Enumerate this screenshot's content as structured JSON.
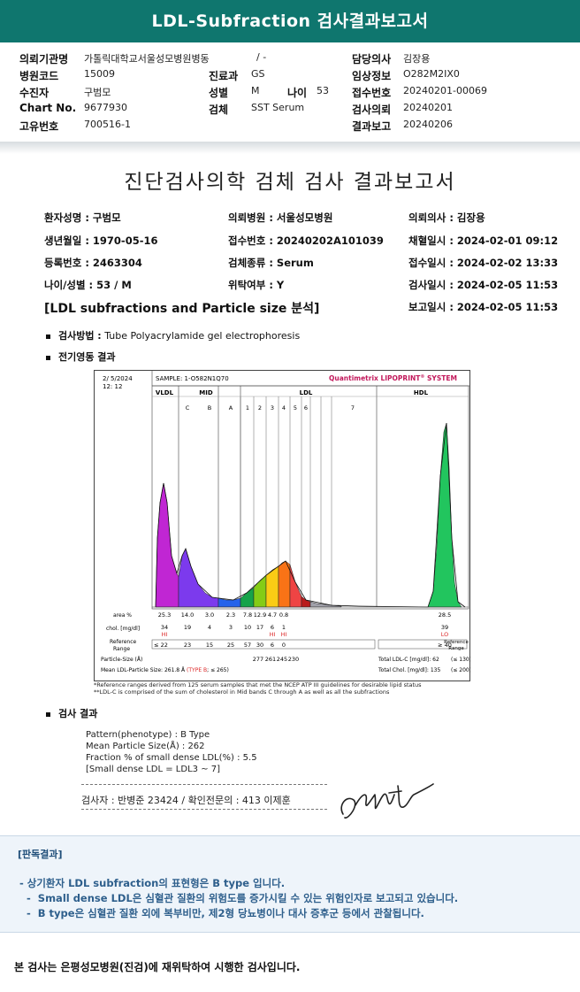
{
  "header": {
    "title": "LDL-Subfraction 검사결과보고서"
  },
  "info": {
    "left": [
      {
        "label": "의뢰기관명",
        "value": "가톨릭대학교서울성모병원병동"
      },
      {
        "label": "병원코드",
        "value": "15009"
      },
      {
        "label": "수진자",
        "value": "구범모"
      },
      {
        "label": "Chart No.",
        "value": "9677930"
      },
      {
        "label": "고유번호",
        "value": "700516-1"
      }
    ],
    "ward_extra": "/ -",
    "mid": [
      {
        "label": "진료과",
        "value": "GS"
      },
      {
        "label": "성별",
        "value": "M"
      },
      {
        "label": "검체",
        "value": "SST Serum"
      }
    ],
    "age_label": "나이",
    "age_value": "53",
    "right": [
      {
        "label": "담당의사",
        "value": "김장용"
      },
      {
        "label": "임상정보",
        "value": "O282M2IX0"
      },
      {
        "label": "접수번호",
        "value": "20240201-00069"
      },
      {
        "label": "검사의뢰",
        "value": "20240201"
      },
      {
        "label": "결과보고",
        "value": "20240206"
      }
    ]
  },
  "doc_title": "진단검사의학 검체 검사 결과보고서",
  "patient": {
    "col1": [
      "환자성명 : 구범모",
      "생년월일 : 1970-05-16",
      "등록번호 : 2463304",
      "나이/성별 : 53 / M"
    ],
    "col2": [
      "의뢰병원 : 서울성모병원",
      "접수번호 : 20240202A101039",
      "검체종류 : Serum",
      "위탁여부 : Y"
    ],
    "col3": [
      "의뢰의사 : 김장용",
      "채혈일시 : 2024-02-01 09:12",
      "접수일시 : 2024-02-02 13:33",
      "검사일시 : 2024-02-05 11:53",
      "보고일시 : 2024-02-05 11:53"
    ]
  },
  "section_title": "[LDL subfractions and Particle size 분석]",
  "method_label": "검사방법 :",
  "method_value": "Tube Polyacrylamide gel electrophoresis",
  "electro_label": "전기영동 결과",
  "chart_data": {
    "type": "area",
    "header_date": "2/ 5/2024",
    "header_time": "12: 12",
    "sample": "SAMPLE:   1-O582N1Q70",
    "system": "Quantimetrix LIPOPRINT",
    "system_mark": "®",
    "system_suffix": " SYSTEM",
    "bands_top": [
      "VLDL",
      "MID",
      "LDL",
      "HDL"
    ],
    "bands_sub": [
      "C",
      "B",
      "A",
      "1",
      "2",
      "3",
      "4",
      "5",
      "6",
      "7"
    ],
    "rows": {
      "area_label": "area %",
      "area": [
        "25.3",
        "14.0",
        "3.0",
        "2.3",
        "7.8",
        "12.9",
        "4.7",
        "0.8",
        "28.5"
      ],
      "chol_label": "chol. [mg/dl]",
      "chol": [
        "34",
        "19",
        "4",
        "3",
        "10",
        "17",
        "6",
        "1",
        "39"
      ],
      "flags": [
        "HI",
        "",
        "",
        "",
        "",
        "",
        "HI",
        "HI",
        "LO"
      ],
      "ref_label": "Reference Range",
      "ref": [
        "≤ 22",
        "23",
        "15",
        "25",
        "57",
        "30",
        "6",
        "0",
        "≥ 40"
      ],
      "ref_right": "Reference Range",
      "psize_label": "Particle-Size (Å)",
      "psize": [
        "277",
        "261",
        "245",
        "230"
      ],
      "total_ldl": "Total LDL-C [mg/dl]:  62",
      "total_ldl_ref": "(≤ 130)",
      "total_chol": "Total Chol. [mg/dl]:  135",
      "total_chol_ref": "(≤ 200)",
      "mean_size": "Mean LDL-Particle Size:   261.8 Å",
      "mean_type": "(TYPE B",
      "mean_type_ref": "; ≤ 265)"
    },
    "footnote1": "*Reference ranges derived from 125 serum samples that met the NCEP ATP III guidelines for desirable lipid status",
    "footnote2": "**LDL-C is comprised of the sum of cholesterol in Mid bands C through A as well as all the subfractions"
  },
  "result_label": "검사 결과",
  "result_lines": [
    "Pattern(phenotype) : B Type",
    "Mean Particle Size(Å) : 262",
    "Fraction % of small dense LDL(%) : 5.5",
    "[Small dense LDL = LDL3 ~ 7]"
  ],
  "signer_line": "검사자 : 반병준  23424  /  확인전문의 : 413  이제훈",
  "verdict": {
    "title": "[판독결과]",
    "lines": [
      "- 상기환자 LDL subfraction의 표현형은 B type 입니다.",
      "  -  Small dense LDL은 심혈관 질환의 위험도를 증가시킬 수 있는 위험인자로 보고되고 있습니다.",
      "  -  B type은 심혈관 질환 외에 복부비만, 제2형 당뇨병이나 대사 증후군 등에서 관찰됩니다."
    ]
  },
  "footer": "본 검사는 은평성모병원(진검)에 재위탁하여 시행한 검사입니다."
}
